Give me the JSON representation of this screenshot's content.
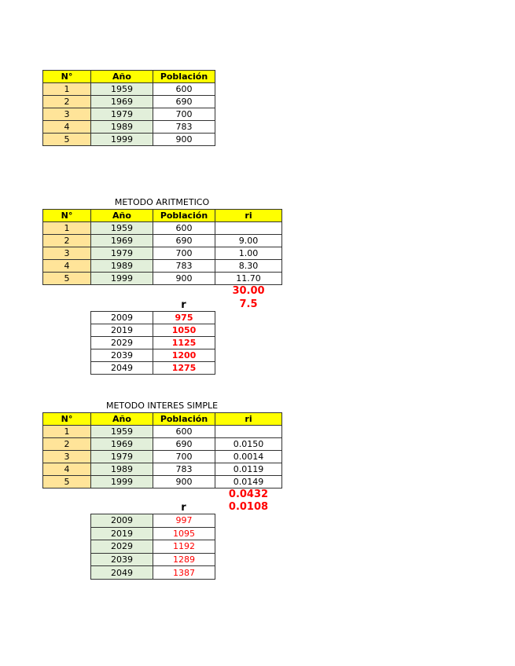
{
  "table1": {
    "headers": [
      "N°",
      "Año",
      "Población"
    ],
    "rows": [
      [
        "1",
        "1959",
        "600"
      ],
      [
        "2",
        "1969",
        "690"
      ],
      [
        "3",
        "1979",
        "700"
      ],
      [
        "4",
        "1989",
        "783"
      ],
      [
        "5",
        "1999",
        "900"
      ]
    ]
  },
  "aritmetico": {
    "title": "METODO ARITMETICO",
    "headers": [
      "N°",
      "Año",
      "Población",
      "ri"
    ],
    "rows": [
      [
        "1",
        "1959",
        "600",
        ""
      ],
      [
        "2",
        "1969",
        "690",
        "9.00"
      ],
      [
        "3",
        "1979",
        "700",
        "1.00"
      ],
      [
        "4",
        "1989",
        "783",
        "8.30"
      ],
      [
        "5",
        "1999",
        "900",
        "11.70"
      ]
    ],
    "sum": "30.00",
    "r_label": "r",
    "r_value": "7.5",
    "projection": [
      [
        "2009",
        "975"
      ],
      [
        "2019",
        "1050"
      ],
      [
        "2029",
        "1125"
      ],
      [
        "2039",
        "1200"
      ],
      [
        "2049",
        "1275"
      ]
    ]
  },
  "interes_simple": {
    "title": "METODO INTERES SIMPLE",
    "headers": [
      "N°",
      "Año",
      "Población",
      "ri"
    ],
    "rows": [
      [
        "1",
        "1959",
        "600",
        ""
      ],
      [
        "2",
        "1969",
        "690",
        "0.0150"
      ],
      [
        "3",
        "1979",
        "700",
        "0.0014"
      ],
      [
        "4",
        "1989",
        "783",
        "0.0119"
      ],
      [
        "5",
        "1999",
        "900",
        "0.0149"
      ]
    ],
    "sum": "0.0432",
    "r_label": "r",
    "r_value": "0.0108",
    "projection": [
      [
        "2009",
        "997"
      ],
      [
        "2019",
        "1095"
      ],
      [
        "2029",
        "1192"
      ],
      [
        "2039",
        "1289"
      ],
      [
        "2049",
        "1387"
      ]
    ]
  }
}
